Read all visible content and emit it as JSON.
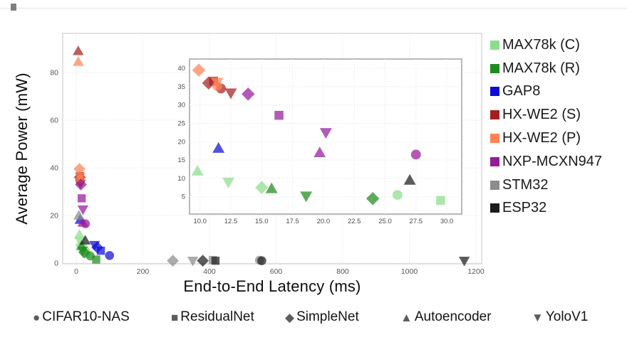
{
  "axes_labels": {
    "xlabel": "End-to-End Latency (ms)",
    "ylabel": "Average Power (mW)"
  },
  "chart_data": {
    "type": "scatter",
    "title": "",
    "xlabel": "End-to-End Latency (ms)",
    "ylabel": "Average Power (mW)",
    "x_ticks": [
      0,
      200,
      400,
      600,
      800,
      1000,
      1200
    ],
    "y_ticks": [
      0,
      20,
      40,
      60,
      80
    ],
    "xlim": [
      -41,
      1217
    ],
    "ylim": [
      -0.3,
      96.4
    ],
    "grid": true,
    "legend_position": "right",
    "series": [
      {
        "name": "MAX78k (C)",
        "color": "#8ddc8d",
        "points": [
          {
            "model": "CIFAR10-NAS",
            "x": 26.0,
            "y": 5.5
          },
          {
            "model": "ResidualNet",
            "x": 29.5,
            "y": 4.0
          },
          {
            "model": "SimpleNet",
            "x": 15.0,
            "y": 7.5
          },
          {
            "model": "Autoencoder",
            "x": 9.8,
            "y": 12.0
          },
          {
            "model": "YoloV1",
            "x": 12.3,
            "y": 9.0
          }
        ]
      },
      {
        "name": "MAX78k (R)",
        "color": "#1e8b1e",
        "points": [
          {
            "model": "CIFAR10-NAS",
            "x": 42.0,
            "y": 3.0
          },
          {
            "model": "ResidualNet",
            "x": 60.0,
            "y": 1.5
          },
          {
            "model": "SimpleNet",
            "x": 24.0,
            "y": 4.5
          },
          {
            "model": "Autoencoder",
            "x": 15.8,
            "y": 7.2
          },
          {
            "model": "YoloV1",
            "x": 18.6,
            "y": 5.2
          }
        ]
      },
      {
        "name": "GAP8",
        "color": "#0d0dd6",
        "points": [
          {
            "model": "CIFAR10-NAS",
            "x": 100.0,
            "y": 3.2
          },
          {
            "model": "ResidualNet",
            "x": 74.0,
            "y": 5.2
          },
          {
            "model": "SimpleNet",
            "x": 63.0,
            "y": 6.6
          },
          {
            "model": "Autoencoder",
            "x": 11.5,
            "y": 18.2
          },
          {
            "model": "YoloV1",
            "x": 55.0,
            "y": 7.6
          }
        ]
      },
      {
        "name": "HX-WE2 (S)",
        "color": "#a42020",
        "points": [
          {
            "model": "CIFAR10-NAS",
            "x": 11.7,
            "y": 34.5
          },
          {
            "model": "ResidualNet",
            "x": 11.1,
            "y": 36.5
          },
          {
            "model": "SimpleNet",
            "x": 10.7,
            "y": 36.0
          },
          {
            "model": "Autoencoder",
            "x": 6.0,
            "y": 89.0
          },
          {
            "model": "YoloV1",
            "x": 12.5,
            "y": 33.3
          }
        ]
      },
      {
        "name": "HX-WE2 (P)",
        "color": "#ff8256",
        "points": [
          {
            "model": "CIFAR10-NAS",
            "x": 11.4,
            "y": 35.2
          },
          {
            "model": "SimpleNet",
            "x": 9.9,
            "y": 39.5
          },
          {
            "model": "Autoencoder",
            "x": 6.0,
            "y": 84.5
          },
          {
            "model": "YoloV1",
            "x": 11.4,
            "y": 36.2
          }
        ]
      },
      {
        "name": "NXP-MCXN947",
        "color": "#951b9b",
        "points": [
          {
            "model": "CIFAR10-NAS",
            "x": 27.5,
            "y": 16.5
          },
          {
            "model": "ResidualNet",
            "x": 16.4,
            "y": 27.2
          },
          {
            "model": "SimpleNet",
            "x": 13.9,
            "y": 33.0
          },
          {
            "model": "Autoencoder",
            "x": 19.7,
            "y": 17.0
          },
          {
            "model": "YoloV1",
            "x": 20.2,
            "y": 22.5
          }
        ]
      },
      {
        "name": "STM32",
        "color": "#8c8c8c",
        "points": [
          {
            "model": "CIFAR10-NAS",
            "x": 550.0,
            "y": 1.2
          },
          {
            "model": "ResidualNet",
            "x": 410.0,
            "y": 1.3
          },
          {
            "model": "SimpleNet",
            "x": 290.0,
            "y": 1.0
          },
          {
            "model": "Autoencoder",
            "x": 8.0,
            "y": 20.0
          },
          {
            "model": "YoloV1",
            "x": 350.0,
            "y": 1.0
          }
        ]
      },
      {
        "name": "ESP32",
        "color": "#1c1c1c",
        "points": [
          {
            "model": "CIFAR10-NAS",
            "x": 557.0,
            "y": 1.0
          },
          {
            "model": "ResidualNet",
            "x": 418.0,
            "y": 1.0
          },
          {
            "model": "SimpleNet",
            "x": 380.0,
            "y": 1.0
          },
          {
            "model": "Autoencoder",
            "x": 27.0,
            "y": 9.5
          },
          {
            "model": "YoloV1",
            "x": 1165.0,
            "y": 1.0
          }
        ]
      }
    ],
    "inset": {
      "x_ticks": [
        "10.0",
        "12.5",
        "15.0",
        "17.5",
        "20.0",
        "22.5",
        "25.0",
        "27.5",
        "30.0"
      ],
      "y_ticks": [
        5,
        10,
        15,
        20,
        25,
        30,
        35,
        40
      ],
      "xlim": [
        9.15,
        31.2
      ],
      "ylim": [
        0.2,
        42.5
      ]
    }
  },
  "model_markers": [
    {
      "label": "CIFAR10-NAS",
      "marker": "circle",
      "glyph": "●"
    },
    {
      "label": "ResidualNet",
      "marker": "square",
      "glyph": "■"
    },
    {
      "label": "SimpleNet",
      "marker": "diamond",
      "glyph": "◆"
    },
    {
      "label": "Autoencoder",
      "marker": "triangle-up",
      "glyph": "▲"
    },
    {
      "label": "YoloV1",
      "marker": "triangle-down",
      "glyph": "▼"
    }
  ],
  "style": {
    "marker_opacity": 0.72,
    "grid_color": "#d9d9d9",
    "frame_color": "#cfcfcf",
    "inset_frame_color": "#a6a6a6",
    "tick_color": "#555555"
  }
}
